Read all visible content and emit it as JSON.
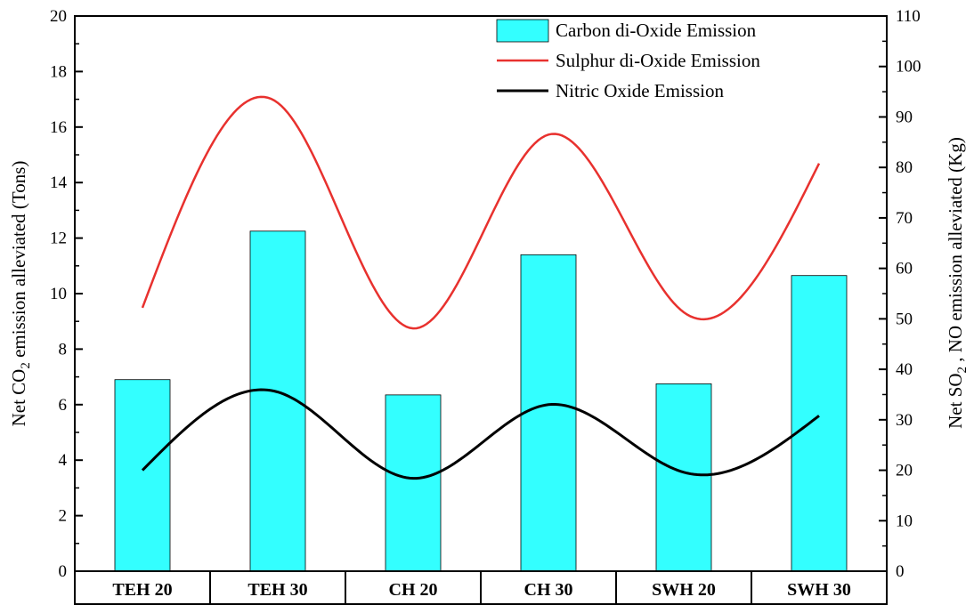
{
  "chart_data": {
    "type": "bar",
    "categories": [
      "TEH 20",
      "TEH 30",
      "CH 20",
      "CH 30",
      "SWH 20",
      "SWH 30"
    ],
    "series": [
      {
        "name": "Carbon di-Oxide Emission",
        "type": "bar",
        "axis": "left",
        "color": "#33FFFF",
        "values": [
          6.9,
          12.25,
          6.35,
          11.4,
          6.75,
          10.65
        ]
      },
      {
        "name": "Sulphur di-Oxide Emission",
        "type": "line",
        "axis": "right",
        "color": "#E8312E",
        "values": [
          52.2,
          92.8,
          48.1,
          86.5,
          51.3,
          80.8
        ]
      },
      {
        "name": "Nitric Oxide Emission",
        "type": "line",
        "axis": "right",
        "color": "#000000",
        "values": [
          20.0,
          35.5,
          18.4,
          33.0,
          19.6,
          30.8
        ]
      }
    ],
    "ylabel_left": {
      "prefix": "Net CO",
      "sub": "2",
      "suffix": " emission alleviated (Tons)"
    },
    "ylabel_right": {
      "prefix": "Net SO",
      "sub": "2",
      "suffix": " , NO emission alleviated (Kg)"
    },
    "ylim_left": [
      0,
      20
    ],
    "ylim_right": [
      0,
      110
    ],
    "yticks_left": [
      "0",
      "2",
      "4",
      "6",
      "8",
      "10",
      "12",
      "14",
      "16",
      "18",
      "20"
    ],
    "yticks_right": [
      "0",
      "10",
      "20",
      "30",
      "40",
      "50",
      "60",
      "70",
      "80",
      "90",
      "100",
      "110"
    ],
    "legend_position": "top-right",
    "grid": false
  }
}
